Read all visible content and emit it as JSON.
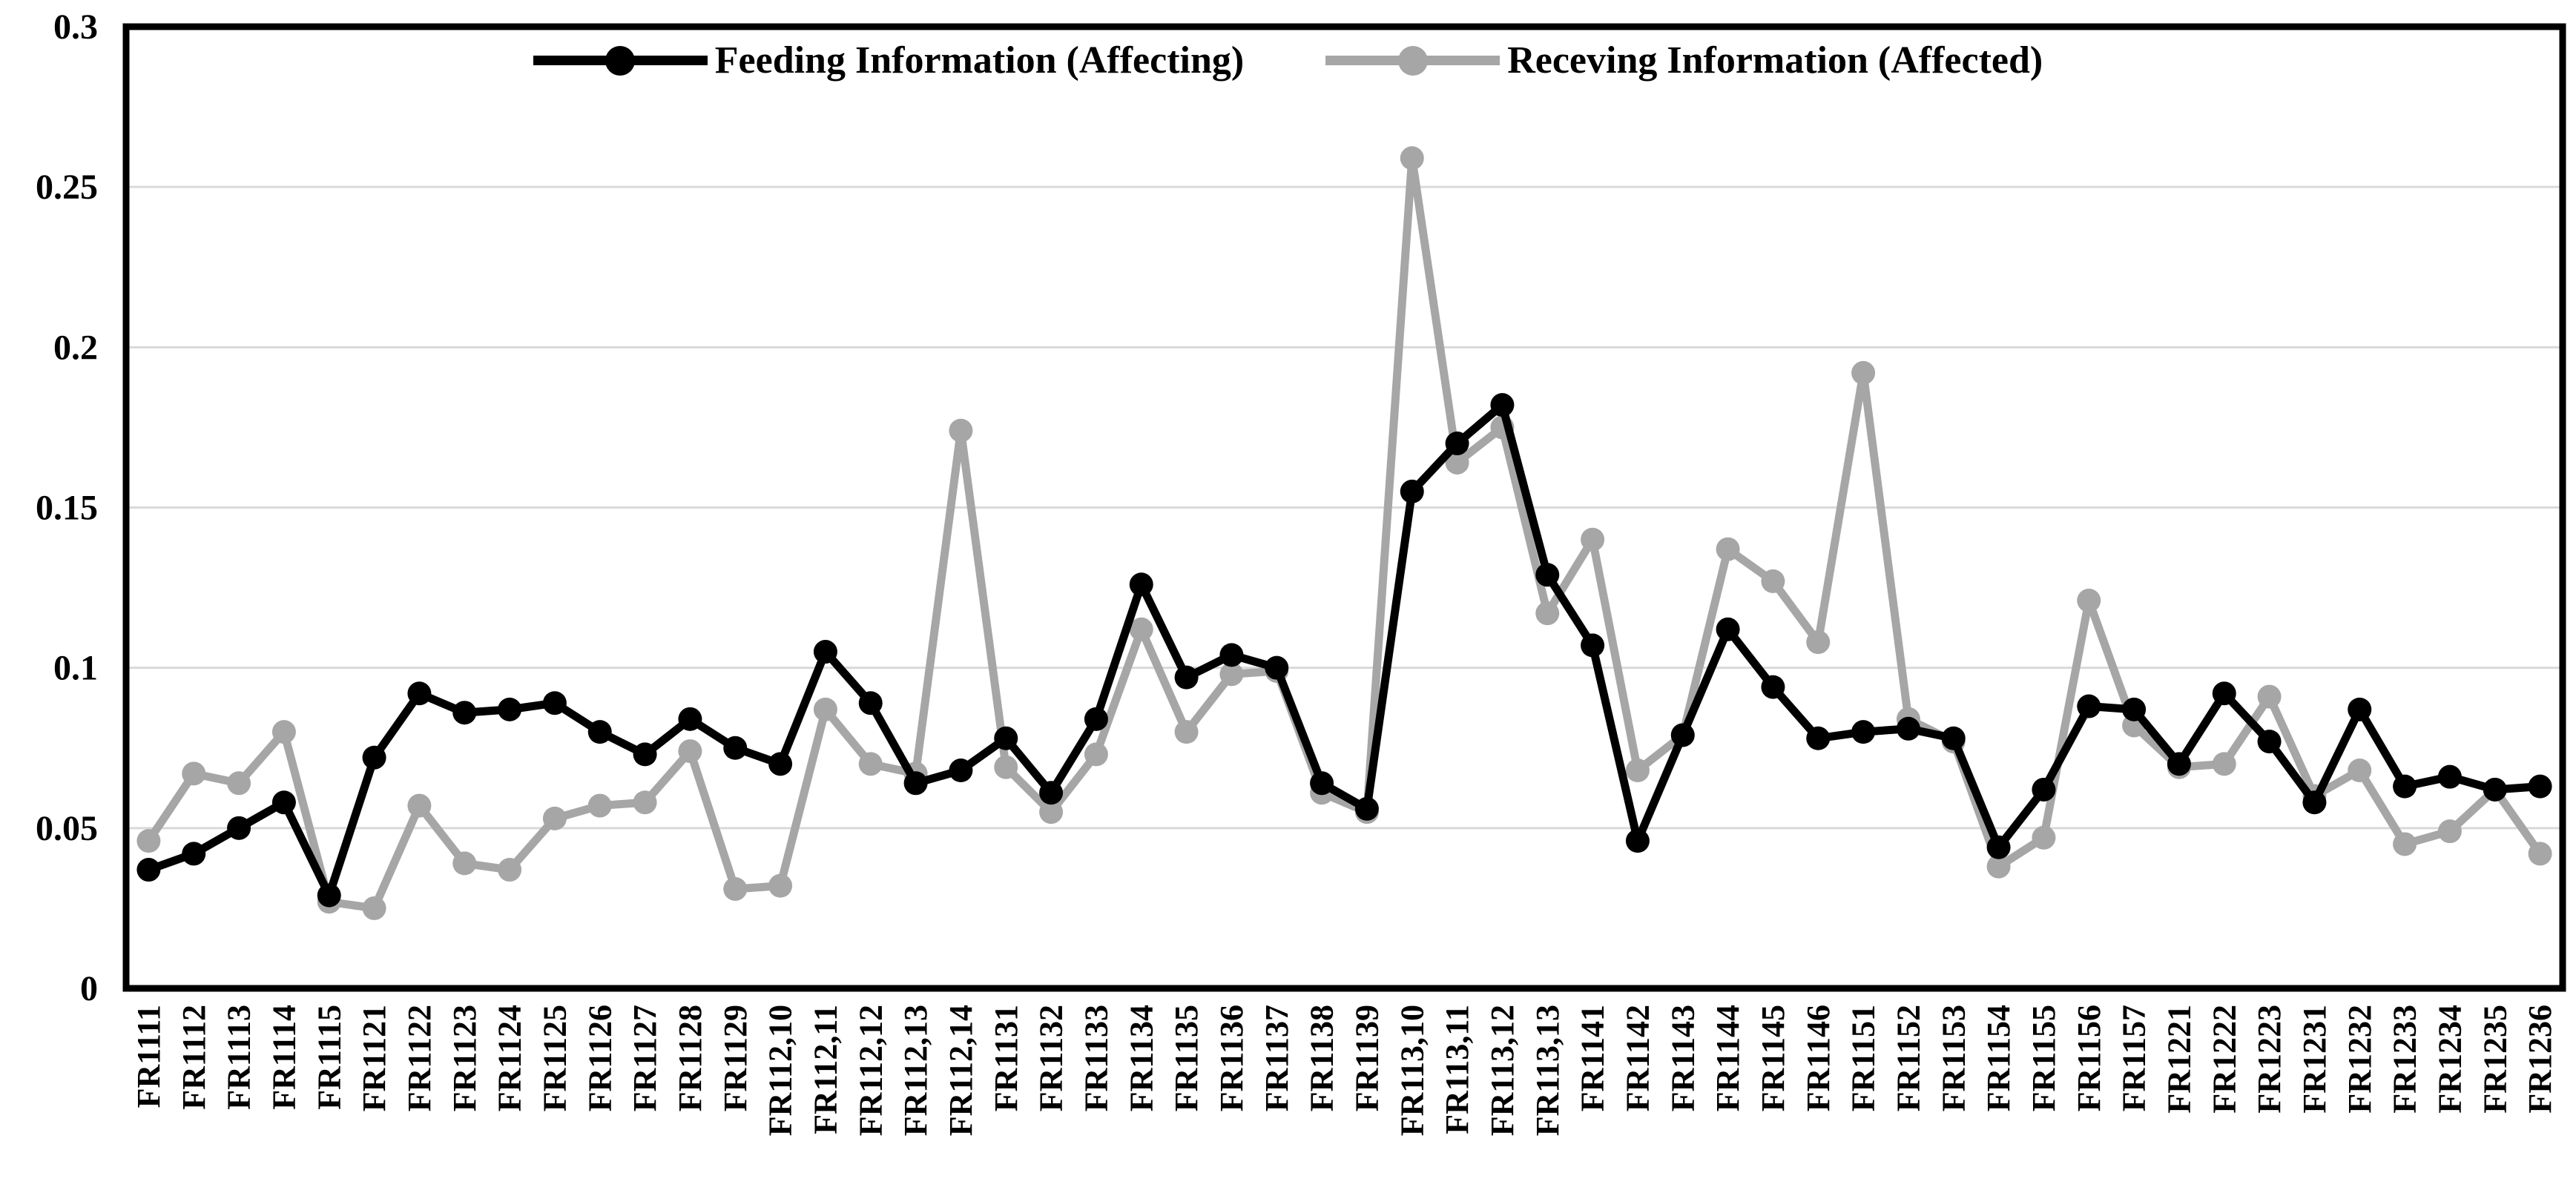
{
  "chart_data": {
    "type": "line",
    "title": "",
    "xlabel": "",
    "ylabel": "",
    "ylim": [
      0,
      0.3
    ],
    "ytick_labels": [
      "0",
      "0.05",
      "0.1",
      "0.15",
      "0.2",
      "0.25",
      "0.3"
    ],
    "ytick_values": [
      0,
      0.05,
      0.1,
      0.15,
      0.2,
      0.25,
      0.3
    ],
    "grid": true,
    "legend_position": "top-center",
    "background_color": "#ffffff",
    "gridline_color": "#d9d9d9",
    "axis_color": "#000000",
    "categories": [
      "FR1111",
      "FR1112",
      "FR1113",
      "FR1114",
      "FR1115",
      "FR1121",
      "FR1122",
      "FR1123",
      "FR1124",
      "FR1125",
      "FR1126",
      "FR1127",
      "FR1128",
      "FR1129",
      "FR112,10",
      "FR112,11",
      "FR112,12",
      "FR112,13",
      "FR112,14",
      "FR1131",
      "FR1132",
      "FR1133",
      "FR1134",
      "FR1135",
      "FR1136",
      "FR1137",
      "FR1138",
      "FR1139",
      "FR113,10",
      "FR113,11",
      "FR113,12",
      "FR113,13",
      "FR1141",
      "FR1142",
      "FR1143",
      "FR1144",
      "FR1145",
      "FR1146",
      "FR1151",
      "FR1152",
      "FR1153",
      "FR1154",
      "FR1155",
      "FR1156",
      "FR1157",
      "FR1221",
      "FR1222",
      "FR1223",
      "FR1231",
      "FR1232",
      "FR1233",
      "FR1234",
      "FR1235",
      "FR1236"
    ],
    "series": [
      {
        "name": "Feeding Information (Affecting)",
        "color": "#000000",
        "values": [
          0.037,
          0.042,
          0.05,
          0.058,
          0.029,
          0.072,
          0.092,
          0.086,
          0.087,
          0.089,
          0.08,
          0.073,
          0.084,
          0.075,
          0.07,
          0.105,
          0.089,
          0.064,
          0.068,
          0.078,
          0.061,
          0.084,
          0.126,
          0.097,
          0.104,
          0.1,
          0.064,
          0.056,
          0.155,
          0.17,
          0.182,
          0.129,
          0.107,
          0.046,
          0.079,
          0.112,
          0.094,
          0.078,
          0.08,
          0.081,
          0.078,
          0.044,
          0.062,
          0.088,
          0.087,
          0.07,
          0.092,
          0.077,
          0.058,
          0.087,
          0.063,
          0.066,
          0.062,
          0.063
        ]
      },
      {
        "name": "Receving Information (Affected)",
        "color": "#a6a6a6",
        "values": [
          0.046,
          0.067,
          0.064,
          0.08,
          0.027,
          0.025,
          0.057,
          0.039,
          0.037,
          0.053,
          0.057,
          0.058,
          0.074,
          0.031,
          0.032,
          0.087,
          0.07,
          0.067,
          0.174,
          0.069,
          0.055,
          0.073,
          0.112,
          0.08,
          0.098,
          0.099,
          0.061,
          0.055,
          0.259,
          0.164,
          0.175,
          0.117,
          0.14,
          0.068,
          0.079,
          0.137,
          0.127,
          0.108,
          0.192,
          0.084,
          0.077,
          0.038,
          0.047,
          0.121,
          0.082,
          0.069,
          0.07,
          0.091,
          0.06,
          0.068,
          0.045,
          0.049,
          0.062,
          0.042
        ]
      }
    ]
  }
}
